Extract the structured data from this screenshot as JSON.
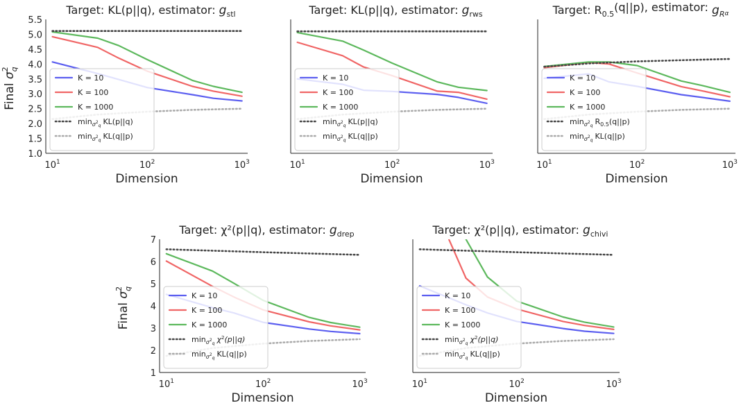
{
  "figure": {
    "shared_ylabel": "Final σ²_q",
    "shared_xlabel": "Dimension"
  },
  "chart_data": [
    {
      "type": "line",
      "title_prefix": "Target: KL(p||q),  estimator: ",
      "estimator_symbol": "g",
      "estimator_sub": "stl",
      "xlabel": "Dimension",
      "ylabel": "Final σ²_q",
      "xscale": "log",
      "xlim": [
        8.5,
        1150
      ],
      "ylim": [
        1.0,
        5.5
      ],
      "yticks": [
        "1.0",
        "1.5",
        "2.0",
        "2.5",
        "3.0",
        "3.5",
        "4.0",
        "4.5",
        "5.0",
        "5.5"
      ],
      "xticks": [
        "10¹",
        "10²",
        "10³"
      ],
      "legend_position": "lower-left",
      "series": [
        {
          "name": "K = 10",
          "color": "#5b5ef0",
          "style": "solid",
          "x": [
            10,
            30,
            50,
            100,
            300,
            500,
            1000
          ],
          "y": [
            4.07,
            3.68,
            3.48,
            3.21,
            2.97,
            2.85,
            2.76
          ]
        },
        {
          "name": "K = 100",
          "color": "#f06565",
          "style": "solid",
          "x": [
            10,
            30,
            50,
            100,
            300,
            500,
            1000
          ],
          "y": [
            4.92,
            4.56,
            4.2,
            3.76,
            3.25,
            3.09,
            2.92
          ]
        },
        {
          "name": "K = 1000",
          "color": "#5cb85c",
          "style": "solid",
          "x": [
            10,
            30,
            50,
            100,
            300,
            500,
            1000
          ],
          "y": [
            5.08,
            4.87,
            4.62,
            4.15,
            3.45,
            3.25,
            3.05
          ]
        },
        {
          "name": "min_{σ²_q} KL(p||q)",
          "color": "#444444",
          "style": "dotted",
          "x": [
            10,
            1000
          ],
          "y": [
            5.11,
            5.11
          ]
        },
        {
          "name": "min_{σ²_q} KL(q||p)",
          "color": "#aaaaaa",
          "style": "dotted",
          "x": [
            10,
            30,
            100,
            300,
            1000
          ],
          "y": [
            2.15,
            2.3,
            2.4,
            2.46,
            2.5
          ]
        }
      ]
    },
    {
      "type": "line",
      "title_prefix": "Target: KL(p||q),  estimator: ",
      "estimator_symbol": "g",
      "estimator_sub": "rws",
      "xlabel": "Dimension",
      "ylabel": "",
      "xscale": "log",
      "xlim": [
        8.5,
        1150
      ],
      "ylim": [
        1.0,
        5.5
      ],
      "yticks": [],
      "xticks": [
        "10¹",
        "10²",
        "10³"
      ],
      "legend_position": "lower-left",
      "series": [
        {
          "name": "K = 10",
          "color": "#5b5ef0",
          "style": "solid",
          "x": [
            10,
            30,
            50,
            100,
            300,
            500,
            1000
          ],
          "y": [
            3.5,
            3.32,
            3.12,
            3.08,
            2.98,
            2.88,
            2.68
          ]
        },
        {
          "name": "K = 100",
          "color": "#f06565",
          "style": "solid",
          "x": [
            10,
            30,
            50,
            100,
            300,
            500,
            1000
          ],
          "y": [
            4.73,
            4.28,
            3.9,
            3.61,
            3.09,
            3.05,
            2.82
          ]
        },
        {
          "name": "K = 1000",
          "color": "#5cb85c",
          "style": "solid",
          "x": [
            10,
            30,
            50,
            100,
            300,
            500,
            1000
          ],
          "y": [
            5.06,
            4.77,
            4.47,
            4.03,
            3.4,
            3.22,
            3.11
          ]
        },
        {
          "name": "min_{σ²_q} KL(p||q)",
          "color": "#444444",
          "style": "dotted",
          "x": [
            10,
            1000
          ],
          "y": [
            5.1,
            5.1
          ]
        },
        {
          "name": "min_{σ²_q} KL(q||p)",
          "color": "#aaaaaa",
          "style": "dotted",
          "x": [
            10,
            30,
            100,
            300,
            1000
          ],
          "y": [
            2.15,
            2.3,
            2.4,
            2.46,
            2.5
          ]
        }
      ]
    },
    {
      "type": "line",
      "title_prefix": "Target: R_0.5(q||p),  estimator: ",
      "estimator_symbol": "g",
      "estimator_sub": "R_α",
      "xlabel": "Dimension",
      "ylabel": "",
      "xscale": "log",
      "xlim": [
        8.5,
        1150
      ],
      "ylim": [
        1.0,
        5.5
      ],
      "yticks": [],
      "xticks": [
        "10¹",
        "10²",
        "10³"
      ],
      "legend_position": "lower-left",
      "series": [
        {
          "name": "K = 10",
          "color": "#5b5ef0",
          "style": "solid",
          "x": [
            10,
            30,
            50,
            100,
            300,
            500,
            1000
          ],
          "y": [
            3.52,
            3.67,
            3.4,
            3.25,
            2.97,
            2.88,
            2.75
          ]
        },
        {
          "name": "K = 100",
          "color": "#f06565",
          "style": "solid",
          "x": [
            10,
            30,
            50,
            100,
            300,
            500,
            1000
          ],
          "y": [
            3.88,
            4.05,
            4.0,
            3.7,
            3.24,
            3.1,
            2.9
          ]
        },
        {
          "name": "K = 1000",
          "color": "#5cb85c",
          "style": "solid",
          "x": [
            10,
            30,
            50,
            100,
            300,
            500,
            1000
          ],
          "y": [
            3.92,
            4.07,
            4.07,
            3.95,
            3.43,
            3.28,
            3.05
          ]
        },
        {
          "name": "min_{σ²_q} R_0.5(q||p)",
          "color": "#444444",
          "style": "dotted",
          "x": [
            10,
            30,
            100,
            300,
            1000
          ],
          "y": [
            3.91,
            4.02,
            4.09,
            4.13,
            4.17
          ]
        },
        {
          "name": "min_{σ²_q} KL(q||p)",
          "color": "#aaaaaa",
          "style": "dotted",
          "x": [
            10,
            30,
            100,
            300,
            1000
          ],
          "y": [
            2.15,
            2.3,
            2.4,
            2.46,
            2.5
          ]
        }
      ]
    },
    {
      "type": "line",
      "title_prefix": "Target: χ²(p||q),  estimator: ",
      "estimator_symbol": "g",
      "estimator_sub": "drep",
      "xlabel": "Dimension",
      "ylabel": "Final σ²_q",
      "xscale": "log",
      "xlim": [
        8.5,
        1150
      ],
      "ylim": [
        1,
        7
      ],
      "yticks": [
        "1",
        "2",
        "3",
        "4",
        "5",
        "6",
        "7"
      ],
      "xticks": [
        "10¹",
        "10²",
        "10³"
      ],
      "legend_position": "lower-left",
      "series": [
        {
          "name": "K = 10",
          "color": "#5b5ef0",
          "style": "solid",
          "x": [
            10,
            30,
            50,
            100,
            300,
            500,
            1000
          ],
          "y": [
            4.52,
            3.92,
            3.68,
            3.26,
            2.96,
            2.85,
            2.75
          ]
        },
        {
          "name": "K = 100",
          "color": "#f06565",
          "style": "solid",
          "x": [
            10,
            30,
            50,
            100,
            300,
            500,
            1000
          ],
          "y": [
            6.02,
            4.88,
            4.4,
            3.82,
            3.28,
            3.1,
            2.92
          ]
        },
        {
          "name": "K = 1000",
          "color": "#5cb85c",
          "style": "solid",
          "x": [
            10,
            30,
            50,
            100,
            300,
            500,
            1000
          ],
          "y": [
            6.35,
            5.57,
            5.02,
            4.25,
            3.48,
            3.25,
            3.04
          ]
        },
        {
          "name": "min_{σ²_q} χ²(p||q)",
          "color": "#444444",
          "style": "dotted",
          "x": [
            10,
            100,
            1000
          ],
          "y": [
            6.55,
            6.42,
            6.3
          ]
        },
        {
          "name": "min_{σ²_q} KL(q||p)",
          "color": "#aaaaaa",
          "style": "dotted",
          "x": [
            10,
            30,
            100,
            300,
            1000
          ],
          "y": [
            1.75,
            2.1,
            2.3,
            2.42,
            2.5
          ]
        }
      ]
    },
    {
      "type": "line",
      "title_prefix": "Target: χ²(p||q),  estimator: ",
      "estimator_symbol": "g",
      "estimator_sub": "chivi",
      "xlabel": "Dimension",
      "ylabel": "",
      "xscale": "log",
      "xlim": [
        8.5,
        1150
      ],
      "ylim": [
        1,
        7
      ],
      "yticks": [],
      "xticks": [
        "10¹",
        "10²",
        "10³"
      ],
      "legend_position": "lower-left",
      "series": [
        {
          "name": "K = 10",
          "color": "#5b5ef0",
          "style": "solid",
          "x": [
            10,
            30,
            50,
            100,
            300,
            500,
            1000
          ],
          "y": [
            4.9,
            4.05,
            3.68,
            3.3,
            2.98,
            2.86,
            2.76
          ]
        },
        {
          "name": "K = 100",
          "color": "#f06565",
          "style": "solid",
          "x": [
            20,
            30,
            50,
            100,
            300,
            500,
            1000
          ],
          "y": [
            7.0,
            5.25,
            4.4,
            3.86,
            3.3,
            3.12,
            2.94
          ]
        },
        {
          "name": "K = 1000",
          "color": "#5cb85c",
          "style": "solid",
          "x": [
            30,
            50,
            100,
            300,
            500,
            1000
          ],
          "y": [
            7.0,
            5.3,
            4.22,
            3.5,
            3.27,
            3.05
          ]
        },
        {
          "name": "min_{σ²_q} χ²(p||q)",
          "color": "#444444",
          "style": "dotted",
          "x": [
            10,
            100,
            1000
          ],
          "y": [
            6.55,
            6.42,
            6.3
          ]
        },
        {
          "name": "min_{σ²_q} KL(q||p)",
          "color": "#aaaaaa",
          "style": "dotted",
          "x": [
            10,
            30,
            100,
            300,
            1000
          ],
          "y": [
            1.75,
            2.1,
            2.3,
            2.42,
            2.5
          ]
        }
      ]
    }
  ]
}
